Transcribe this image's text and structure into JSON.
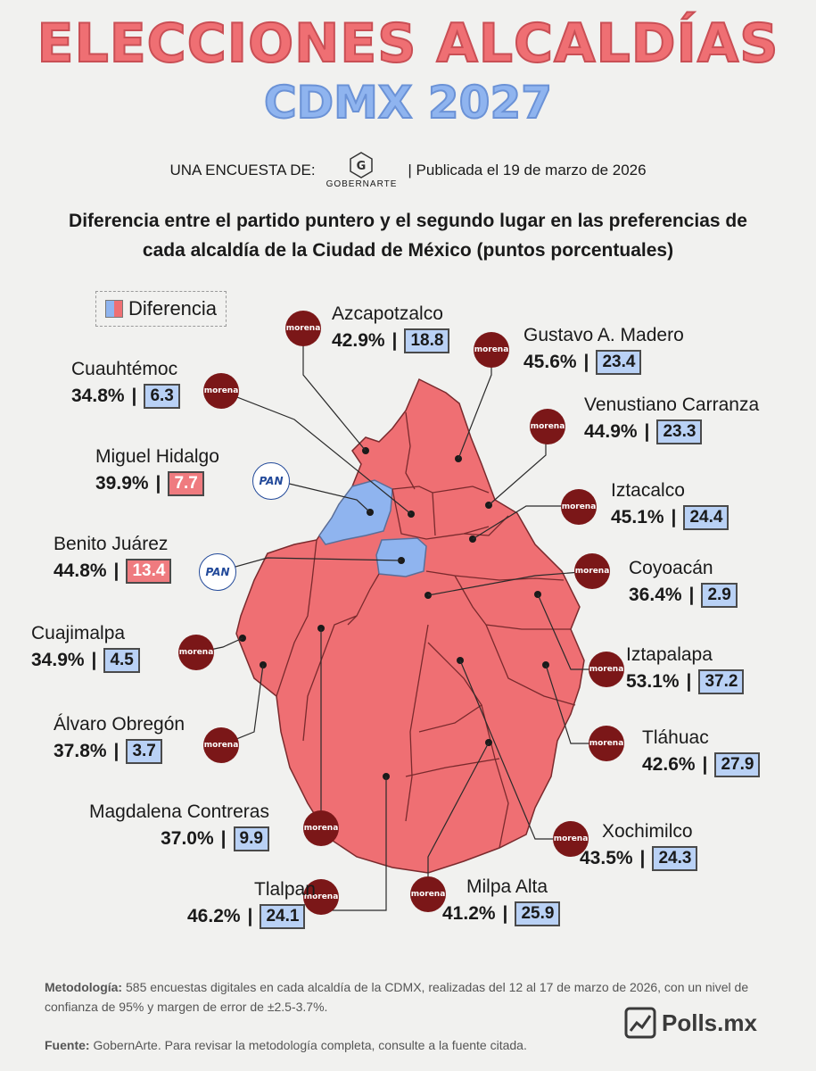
{
  "title": {
    "line1": "ELECCIONES ALCALDÍAS",
    "line2": "CDMX 2027"
  },
  "byline": {
    "prefix": "UNA ENCUESTA DE:",
    "pollster_logo": "GOBERNARTE",
    "published": "| Publicada el 19 de marzo de 2026"
  },
  "subtitle": "Diferencia entre el partido puntero y el segundo lugar en las preferencias de cada alcaldía de la Ciudad de México (puntos porcentuales)",
  "legend": {
    "label": "Diferencia"
  },
  "colors": {
    "morena_region": "#ef6f73",
    "pan_region": "#8fb4ef",
    "morena_badge": "#7b1718",
    "pan_badge": "#234a9a"
  },
  "alcaldias": [
    {
      "name": "Azcapotzalco",
      "leader_pct": "42.9%",
      "diff": "18.8",
      "party": "morena",
      "party_label": "morena"
    },
    {
      "name": "Gustavo A. Madero",
      "leader_pct": "45.6%",
      "diff": "23.4",
      "party": "morena",
      "party_label": "morena"
    },
    {
      "name": "Cuauhtémoc",
      "leader_pct": "34.8%",
      "diff": "6.3",
      "party": "morena",
      "party_label": "morena"
    },
    {
      "name": "Venustiano Carranza",
      "leader_pct": "44.9%",
      "diff": "23.3",
      "party": "morena",
      "party_label": "morena"
    },
    {
      "name": "Miguel Hidalgo",
      "leader_pct": "39.9%",
      "diff": "7.7",
      "party": "pan",
      "party_label": "PAN"
    },
    {
      "name": "Iztacalco",
      "leader_pct": "45.1%",
      "diff": "24.4",
      "party": "morena",
      "party_label": "morena"
    },
    {
      "name": "Benito Juárez",
      "leader_pct": "44.8%",
      "diff": "13.4",
      "party": "pan",
      "party_label": "PAN"
    },
    {
      "name": "Coyoacán",
      "leader_pct": "36.4%",
      "diff": "2.9",
      "party": "morena",
      "party_label": "morena"
    },
    {
      "name": "Cuajimalpa",
      "leader_pct": "34.9%",
      "diff": "4.5",
      "party": "morena",
      "party_label": "morena"
    },
    {
      "name": "Iztapalapa",
      "leader_pct": "53.1%",
      "diff": "37.2",
      "party": "morena",
      "party_label": "morena"
    },
    {
      "name": "Álvaro Obregón",
      "leader_pct": "37.8%",
      "diff": "3.7",
      "party": "morena",
      "party_label": "morena"
    },
    {
      "name": "Tláhuac",
      "leader_pct": "42.6%",
      "diff": "27.9",
      "party": "morena",
      "party_label": "morena"
    },
    {
      "name": "Magdalena Contreras",
      "leader_pct": "37.0%",
      "diff": "9.9",
      "party": "morena",
      "party_label": "morena"
    },
    {
      "name": "Xochimilco",
      "leader_pct": "43.5%",
      "diff": "24.3",
      "party": "morena",
      "party_label": "morena"
    },
    {
      "name": "Tlalpan",
      "leader_pct": "46.2%",
      "diff": "24.1",
      "party": "morena",
      "party_label": "morena"
    },
    {
      "name": "Milpa Alta",
      "leader_pct": "41.2%",
      "diff": "25.9",
      "party": "morena",
      "party_label": "morena"
    }
  ],
  "footer": {
    "method_label": "Metodología:",
    "method_text": "585 encuestas digitales en cada alcaldía de la CDMX, realizadas del 12 al 17 de marzo de 2026, con un nivel de confianza de 95% y margen de error de ±2.5-3.7%.",
    "source_label": "Fuente:",
    "source_text": "GobernArte. Para revisar la metodología completa, consulte a la fuente citada.",
    "brand": "Polls.mx"
  }
}
